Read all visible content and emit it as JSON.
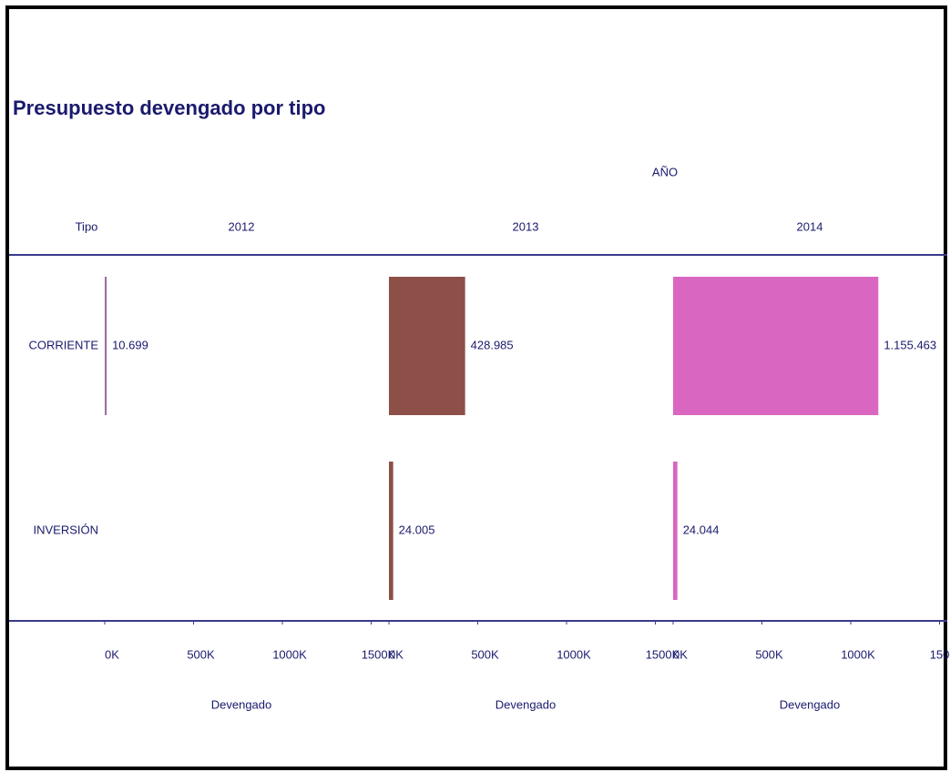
{
  "chart_data": {
    "type": "bar",
    "title": "Presupuesto devengado por tipo",
    "column_header": "AÑO",
    "row_header": "Tipo",
    "xlabel": "Devengado",
    "categories": [
      "CORRIENTE",
      "INVERSIÓN"
    ],
    "series": [
      {
        "name": "2012",
        "color": "#9c6fa0",
        "values": [
          10699,
          null
        ],
        "value_labels": [
          "10.699",
          null
        ]
      },
      {
        "name": "2013",
        "color": "#8c5048",
        "values": [
          428985,
          24005
        ],
        "value_labels": [
          "428.985",
          "24.005"
        ]
      },
      {
        "name": "2014",
        "color": "#d966c0",
        "values": [
          1155463,
          24044
        ],
        "value_labels": [
          "1.155.463",
          "24.044"
        ]
      }
    ],
    "xlim": [
      0,
      1600000
    ],
    "xticks": [
      {
        "value": 0,
        "label": "0K"
      },
      {
        "value": 500000,
        "label": "500K"
      },
      {
        "value": 1000000,
        "label": "1000K"
      },
      {
        "value": 1500000,
        "label": "1500K"
      }
    ]
  }
}
